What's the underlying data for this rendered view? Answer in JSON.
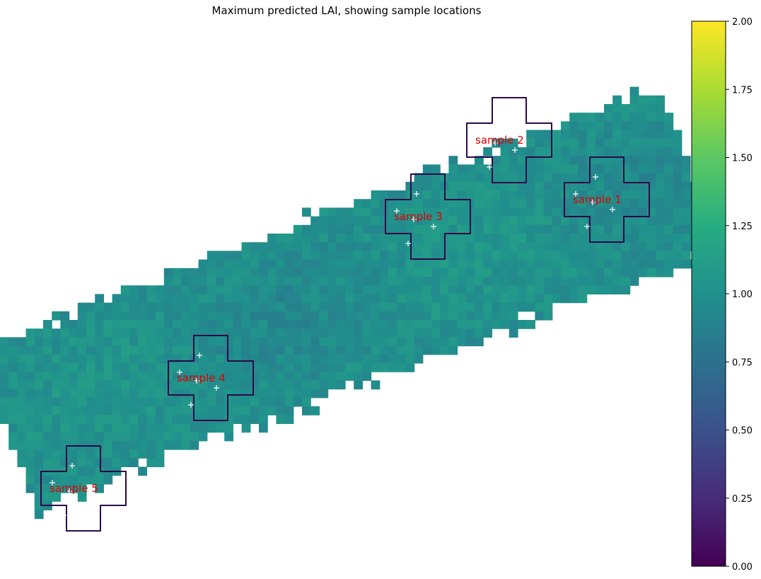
{
  "chart_data": {
    "type": "heatmap",
    "title": "Maximum predicted LAI, showing sample locations",
    "colormap": "viridis",
    "colorbar": {
      "min": 0.0,
      "max": 2.0,
      "ticks": [
        "0.00",
        "0.25",
        "0.50",
        "0.75",
        "1.00",
        "1.25",
        "1.50",
        "1.75",
        "2.00"
      ],
      "placement": "right"
    },
    "value_range_in_field": [
      0.8,
      1.2
    ],
    "samples": [
      {
        "name": "sample 1",
        "points": 5
      },
      {
        "name": "sample 2",
        "points": 5
      },
      {
        "name": "sample 3",
        "points": 5
      },
      {
        "name": "sample 4",
        "points": 5
      },
      {
        "name": "sample 5",
        "points": 5
      }
    ],
    "colors": {
      "outline": "#2a0a4a",
      "label": "#e00000",
      "marker": "#ffffff"
    },
    "axes_visible": false
  }
}
